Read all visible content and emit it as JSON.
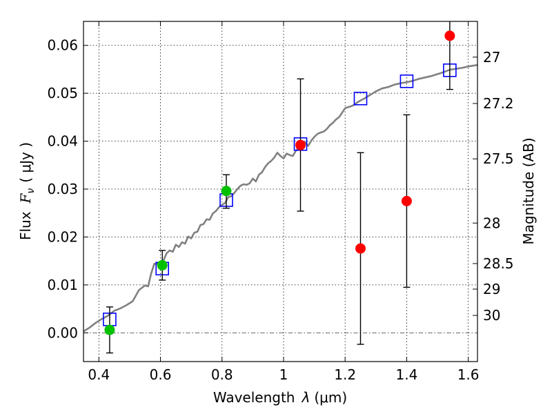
{
  "chart_data": {
    "type": "scatter",
    "xlabel_text": "Wavelength",
    "xlabel_symbol": "λ",
    "xlabel_unit": "(μm)",
    "ylabel_text": "Flux",
    "ylabel_symbol": "F",
    "ylabel_subscript": "ν",
    "ylabel_unit": "( μJy )",
    "y2label": "Magnitude (AB)",
    "xlim": [
      0.35,
      1.63
    ],
    "ylim": [
      -0.006,
      0.065
    ],
    "grid": true,
    "x_ticks": [
      {
        "value": 0.4,
        "label": "0.4"
      },
      {
        "value": 0.6,
        "label": "0.6"
      },
      {
        "value": 0.8,
        "label": "0.8"
      },
      {
        "value": 1.0,
        "label": "1"
      },
      {
        "value": 1.2,
        "label": "1.2"
      },
      {
        "value": 1.4,
        "label": "1.4"
      },
      {
        "value": 1.6,
        "label": "1.6"
      }
    ],
    "y_ticks": [
      {
        "value": 0.0,
        "label": "0.00"
      },
      {
        "value": 0.01,
        "label": "0.01"
      },
      {
        "value": 0.02,
        "label": "0.02"
      },
      {
        "value": 0.03,
        "label": "0.03"
      },
      {
        "value": 0.04,
        "label": "0.04"
      },
      {
        "value": 0.05,
        "label": "0.05"
      },
      {
        "value": 0.06,
        "label": "0.06"
      }
    ],
    "y2_ticks": [
      {
        "flux": 0.05754,
        "label": "27"
      },
      {
        "flux": 0.04786,
        "label": "27.2"
      },
      {
        "flux": 0.03631,
        "label": "27.5"
      },
      {
        "flux": 0.02291,
        "label": "28"
      },
      {
        "flux": 0.01445,
        "label": "28.5"
      },
      {
        "flux": 0.00912,
        "label": "29"
      },
      {
        "flux": 0.00363,
        "label": "30"
      }
    ],
    "series": [
      {
        "name": "model-spectrum",
        "kind": "line",
        "color": "#808080",
        "x": [
          0.35,
          0.37,
          0.39,
          0.41,
          0.43,
          0.45,
          0.47,
          0.49,
          0.51,
          0.53,
          0.55,
          0.56,
          0.57,
          0.58,
          0.59,
          0.6,
          0.61,
          0.62,
          0.63,
          0.64,
          0.65,
          0.66,
          0.67,
          0.68,
          0.69,
          0.7,
          0.71,
          0.72,
          0.73,
          0.74,
          0.75,
          0.76,
          0.77,
          0.78,
          0.79,
          0.8,
          0.81,
          0.82,
          0.83,
          0.84,
          0.85,
          0.86,
          0.87,
          0.88,
          0.89,
          0.9,
          0.91,
          0.92,
          0.93,
          0.94,
          0.95,
          0.96,
          0.97,
          0.98,
          0.99,
          1.0,
          1.01,
          1.02,
          1.03,
          1.04,
          1.05,
          1.06,
          1.07,
          1.08,
          1.09,
          1.1,
          1.11,
          1.12,
          1.13,
          1.14,
          1.15,
          1.16,
          1.17,
          1.18,
          1.19,
          1.2,
          1.21,
          1.22,
          1.23,
          1.24,
          1.25,
          1.26,
          1.27,
          1.28,
          1.29,
          1.3,
          1.32,
          1.34,
          1.36,
          1.38,
          1.4,
          1.42,
          1.44,
          1.46,
          1.48,
          1.5,
          1.52,
          1.54,
          1.56,
          1.58,
          1.6,
          1.63
        ],
        "y": [
          0.0003,
          0.0011,
          0.0021,
          0.0029,
          0.0036,
          0.0046,
          0.0051,
          0.0058,
          0.0066,
          0.0089,
          0.0099,
          0.0097,
          0.0124,
          0.0144,
          0.0144,
          0.0144,
          0.0151,
          0.0166,
          0.0172,
          0.0169,
          0.0184,
          0.0179,
          0.0189,
          0.0186,
          0.0201,
          0.0197,
          0.0209,
          0.0211,
          0.0225,
          0.0227,
          0.0237,
          0.0236,
          0.0249,
          0.0254,
          0.0262,
          0.0267,
          0.0271,
          0.0283,
          0.0285,
          0.0292,
          0.03,
          0.0307,
          0.031,
          0.0309,
          0.0312,
          0.0322,
          0.0316,
          0.033,
          0.0335,
          0.0346,
          0.0354,
          0.0359,
          0.0366,
          0.0376,
          0.0369,
          0.0364,
          0.0374,
          0.0371,
          0.0369,
          0.038,
          0.0387,
          0.0393,
          0.0398,
          0.039,
          0.0401,
          0.0409,
          0.0415,
          0.0418,
          0.042,
          0.0425,
          0.0433,
          0.0438,
          0.0445,
          0.045,
          0.0459,
          0.0469,
          0.0471,
          0.0473,
          0.0476,
          0.0481,
          0.0485,
          0.0488,
          0.0492,
          0.0496,
          0.05,
          0.0504,
          0.051,
          0.0513,
          0.0518,
          0.0521,
          0.0523,
          0.0526,
          0.053,
          0.0533,
          0.0536,
          0.054,
          0.0544,
          0.0549,
          0.0551,
          0.0553,
          0.0556,
          0.0559
        ]
      },
      {
        "name": "model-photometry",
        "kind": "open-square",
        "color": "#0000ff",
        "x": [
          0.435,
          0.606,
          0.814,
          1.055,
          1.25,
          1.4,
          1.54
        ],
        "y": [
          0.0028,
          0.0134,
          0.0277,
          0.0394,
          0.0489,
          0.0525,
          0.0548
        ]
      },
      {
        "name": "observed-optical",
        "kind": "filled-circle",
        "color": "#00c000",
        "x": [
          0.435,
          0.606,
          0.814
        ],
        "y": [
          0.0006,
          0.0141,
          0.0296
        ],
        "err_low": [
          0.0048,
          0.0031,
          0.0036
        ],
        "err_high": [
          0.0048,
          0.0031,
          0.0034
        ]
      },
      {
        "name": "observed-infrared",
        "kind": "filled-circle",
        "color": "#ff0000",
        "x": [
          1.055,
          1.25,
          1.4,
          1.54
        ],
        "y": [
          0.0392,
          0.0176,
          0.0275,
          0.062
        ],
        "err_low": [
          0.0138,
          0.02,
          0.018,
          0.0112
        ],
        "err_high": [
          0.0138,
          0.02,
          0.018,
          0.005
        ]
      }
    ],
    "reference_line": {
      "y": 0.0,
      "style": "dash-dot"
    }
  }
}
